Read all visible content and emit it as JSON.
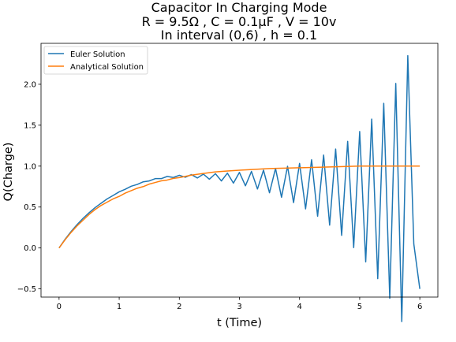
{
  "chart_data": {
    "type": "line",
    "title": [
      "Capacitor In Charging Mode",
      "R = 9.5Ω , C = 0.1μF , V = 10v",
      "In interval (0,6) , h = 0.1"
    ],
    "xlabel": "t (Time)",
    "ylabel": "Q(Charge)",
    "xlim": [
      -0.3,
      6.3
    ],
    "ylim": [
      -0.6,
      2.5
    ],
    "xticks": [
      "0",
      "1",
      "2",
      "3",
      "4",
      "5",
      "6"
    ],
    "yticks": [
      "−0.5",
      "0.0",
      "0.5",
      "1.0",
      "1.5",
      "2.0"
    ],
    "grid": false,
    "legend_position": "top-left",
    "series": [
      {
        "name": "Euler Solution",
        "color": "#1f77b4",
        "x": [
          0.0,
          0.1,
          0.2,
          0.3,
          0.4,
          0.5,
          0.6,
          0.7,
          0.8,
          0.9,
          1.0,
          1.1,
          1.2,
          1.3,
          1.4,
          1.5,
          1.6,
          1.7,
          1.8,
          1.9,
          2.0,
          2.1,
          2.2,
          2.3,
          2.4,
          2.5,
          2.6,
          2.7,
          2.8,
          2.9,
          3.0,
          3.1,
          3.2,
          3.3,
          3.4,
          3.5,
          3.6,
          3.7,
          3.8,
          3.9,
          4.0,
          4.1,
          4.2,
          4.3,
          4.4,
          4.5,
          4.6,
          4.7,
          4.8,
          4.9,
          5.0,
          5.1,
          5.2,
          5.3,
          5.4,
          5.5,
          5.6,
          5.7,
          5.8,
          5.9,
          6.0
        ],
        "y": [
          0.0,
          0.1053,
          0.2008,
          0.2858,
          0.3627,
          0.4303,
          0.4935,
          0.5472,
          0.5998,
          0.6419,
          0.6858,
          0.7174,
          0.7546,
          0.776,
          0.8081,
          0.819,
          0.8476,
          0.8473,
          0.8741,
          0.861,
          0.8883,
          0.8638,
          0.8967,
          0.8554,
          0.9023,
          0.8402,
          0.9078,
          0.8188,
          0.9143,
          0.792,
          0.9233,
          0.7597,
          0.935,
          0.7207,
          0.9508,
          0.6745,
          0.9713,
          0.6195,
          0.9982,
          0.5543,
          1.033,
          0.4775,
          1.078,
          0.387,
          1.135,
          0.279,
          1.209,
          0.1535,
          1.303,
          0.004,
          1.423,
          -0.17,
          1.575,
          -0.375,
          1.767,
          -0.615,
          2.01,
          -0.9,
          2.35,
          0.05,
          -0.5
        ]
      },
      {
        "name": "Analytical Solution",
        "color": "#ff7f0e",
        "x": [
          0.0,
          0.1,
          0.2,
          0.3,
          0.4,
          0.5,
          0.6,
          0.7,
          0.8,
          0.9,
          1.0,
          1.1,
          1.2,
          1.3,
          1.4,
          1.5,
          1.6,
          1.7,
          1.8,
          1.9,
          2.0,
          2.2,
          2.4,
          2.6,
          2.8,
          3.0,
          3.5,
          4.0,
          4.5,
          5.0,
          5.5,
          6.0
        ],
        "y": [
          0.0,
          0.1,
          0.19,
          0.27,
          0.34,
          0.41,
          0.47,
          0.52,
          0.56,
          0.6,
          0.63,
          0.67,
          0.7,
          0.73,
          0.75,
          0.78,
          0.8,
          0.82,
          0.83,
          0.85,
          0.86,
          0.89,
          0.91,
          0.93,
          0.94,
          0.95,
          0.97,
          0.98,
          0.99,
          1.0,
          1.0,
          1.0
        ]
      }
    ]
  }
}
